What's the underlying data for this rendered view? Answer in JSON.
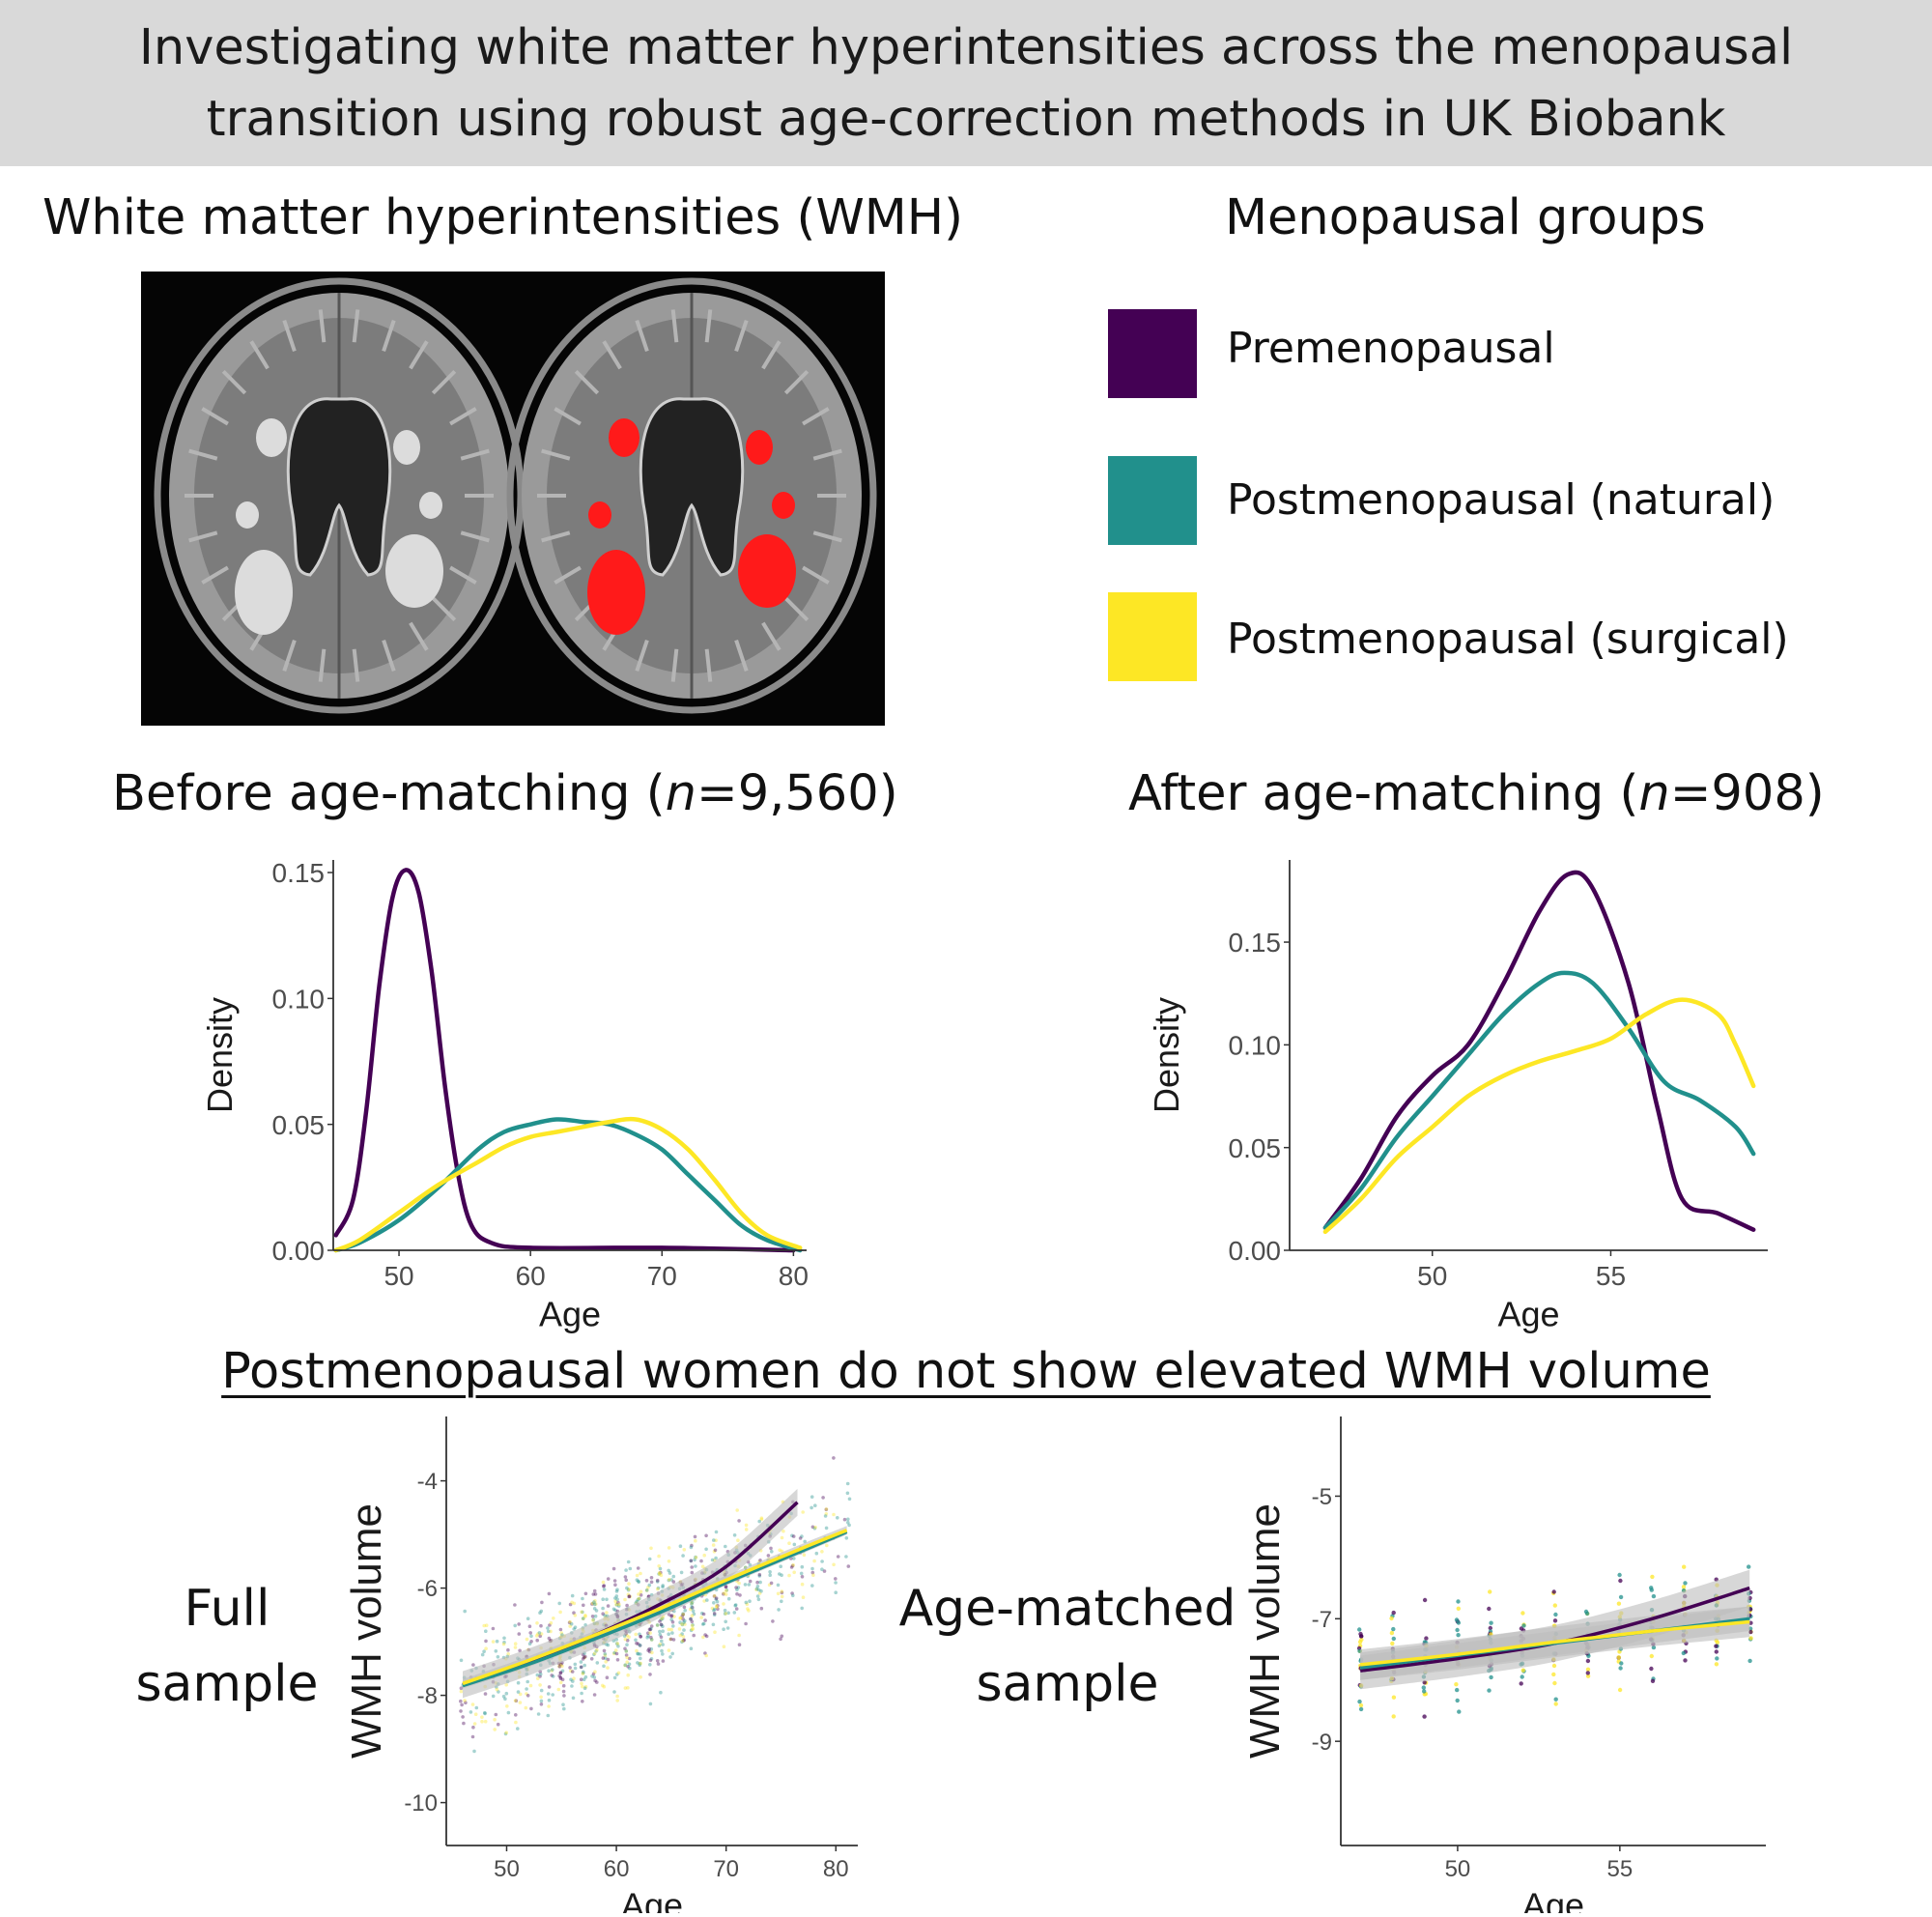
{
  "banner": {
    "line1": "Investigating white matter hyperintensities across the menopausal",
    "line2": "transition using robust age-correction methods in UK Biobank"
  },
  "wmh_panel": {
    "title": "White matter hyperintensities (WMH)"
  },
  "groups": {
    "title": "Menopausal groups",
    "items": [
      {
        "label": "Premenopausal",
        "color": "#440154"
      },
      {
        "label": "Postmenopausal (natural)",
        "color": "#21908C"
      },
      {
        "label": "Postmenopausal (surgical)",
        "color": "#FDE725"
      }
    ]
  },
  "before": {
    "title_prefix": "Before age-matching (",
    "title_n": "n",
    "title_suffix": "=9,560)"
  },
  "after": {
    "title_prefix": "After age-matching (",
    "title_n": "n",
    "title_suffix": "=908)"
  },
  "findings": {
    "heading": "Postmenopausal women do not show elevated WMH volume",
    "full_label_1": "Full",
    "full_label_2": "sample",
    "matched_label_1": "Age-matched",
    "matched_label_2": "sample"
  },
  "colors": {
    "pre": "#440154",
    "natural": "#21908C",
    "surgical": "#FDE725",
    "lesion": "#ff1a1a",
    "ci": "#bdbdbd"
  },
  "chart_data": [
    {
      "id": "density_before",
      "type": "line",
      "title": "Before age-matching (n=9,560)",
      "xlabel": "Age",
      "ylabel": "Density",
      "xlim": [
        45,
        81
      ],
      "ylim": [
        0,
        0.155
      ],
      "xticks": [
        50,
        60,
        70,
        80
      ],
      "yticks": [
        0.0,
        0.05,
        0.1,
        0.15
      ],
      "ytick_labels": [
        "0.00",
        "0.05",
        "0.10",
        "0.15"
      ],
      "series": [
        {
          "name": "Premenopausal",
          "color": "#440154",
          "points": [
            [
              45.2,
              0.006
            ],
            [
              46.5,
              0.02
            ],
            [
              47.5,
              0.055
            ],
            [
              48.5,
              0.105
            ],
            [
              49.5,
              0.14
            ],
            [
              50.5,
              0.151
            ],
            [
              51.5,
              0.142
            ],
            [
              52.5,
              0.11
            ],
            [
              53.5,
              0.065
            ],
            [
              54.5,
              0.03
            ],
            [
              55.5,
              0.01
            ],
            [
              57,
              0.003
            ],
            [
              60,
              0.001
            ],
            [
              70,
              0.001
            ],
            [
              80,
              0.0
            ]
          ]
        },
        {
          "name": "Postmenopausal (natural)",
          "color": "#21908C",
          "points": [
            [
              45.2,
              0.0
            ],
            [
              47,
              0.003
            ],
            [
              50,
              0.012
            ],
            [
              53,
              0.025
            ],
            [
              56,
              0.04
            ],
            [
              58,
              0.047
            ],
            [
              60,
              0.05
            ],
            [
              62,
              0.052
            ],
            [
              64,
              0.051
            ],
            [
              66,
              0.05
            ],
            [
              68,
              0.046
            ],
            [
              70,
              0.04
            ],
            [
              72,
              0.03
            ],
            [
              74,
              0.02
            ],
            [
              76,
              0.01
            ],
            [
              78,
              0.004
            ],
            [
              80.5,
              0.0
            ]
          ]
        },
        {
          "name": "Postmenopausal (surgical)",
          "color": "#FDE725",
          "points": [
            [
              45.2,
              0.0
            ],
            [
              47,
              0.004
            ],
            [
              50,
              0.015
            ],
            [
              53,
              0.026
            ],
            [
              56,
              0.035
            ],
            [
              58,
              0.041
            ],
            [
              60,
              0.045
            ],
            [
              62,
              0.047
            ],
            [
              64,
              0.049
            ],
            [
              66,
              0.051
            ],
            [
              68,
              0.052
            ],
            [
              70,
              0.048
            ],
            [
              72,
              0.04
            ],
            [
              74,
              0.028
            ],
            [
              76,
              0.015
            ],
            [
              78,
              0.006
            ],
            [
              80.5,
              0.001
            ]
          ]
        }
      ]
    },
    {
      "id": "density_after",
      "type": "line",
      "title": "After age-matching (n=908)",
      "xlabel": "Age",
      "ylabel": "Density",
      "xlim": [
        46,
        59.4
      ],
      "ylim": [
        0,
        0.19
      ],
      "xticks": [
        50,
        55
      ],
      "yticks": [
        0.0,
        0.05,
        0.1,
        0.15
      ],
      "ytick_labels": [
        "0.00",
        "0.05",
        "0.10",
        "0.15"
      ],
      "series": [
        {
          "name": "Premenopausal",
          "color": "#440154",
          "points": [
            [
              47,
              0.011
            ],
            [
              48,
              0.035
            ],
            [
              49,
              0.065
            ],
            [
              50,
              0.085
            ],
            [
              51,
              0.1
            ],
            [
              52,
              0.13
            ],
            [
              53,
              0.165
            ],
            [
              53.8,
              0.183
            ],
            [
              54.5,
              0.176
            ],
            [
              55.5,
              0.13
            ],
            [
              56.3,
              0.07
            ],
            [
              57,
              0.025
            ],
            [
              58,
              0.018
            ],
            [
              59,
              0.01
            ]
          ]
        },
        {
          "name": "Postmenopausal (natural)",
          "color": "#21908C",
          "points": [
            [
              47,
              0.011
            ],
            [
              48,
              0.03
            ],
            [
              49,
              0.055
            ],
            [
              50,
              0.075
            ],
            [
              51,
              0.095
            ],
            [
              52,
              0.115
            ],
            [
              53,
              0.13
            ],
            [
              53.7,
              0.135
            ],
            [
              54.5,
              0.13
            ],
            [
              55.5,
              0.108
            ],
            [
              56.5,
              0.082
            ],
            [
              57.5,
              0.073
            ],
            [
              58.5,
              0.06
            ],
            [
              59,
              0.047
            ]
          ]
        },
        {
          "name": "Postmenopausal (surgical)",
          "color": "#FDE725",
          "points": [
            [
              47,
              0.009
            ],
            [
              48,
              0.025
            ],
            [
              49,
              0.045
            ],
            [
              50,
              0.06
            ],
            [
              51,
              0.075
            ],
            [
              52,
              0.085
            ],
            [
              53,
              0.092
            ],
            [
              54,
              0.097
            ],
            [
              55,
              0.103
            ],
            [
              56,
              0.115
            ],
            [
              57,
              0.122
            ],
            [
              58,
              0.115
            ],
            [
              58.5,
              0.1
            ],
            [
              59,
              0.08
            ]
          ]
        }
      ]
    },
    {
      "id": "wmh_full",
      "type": "scatter",
      "title": "Full sample",
      "xlabel": "Age",
      "ylabel": "WMH volume",
      "xlim": [
        44.5,
        82
      ],
      "ylim": [
        -10.8,
        -2.8
      ],
      "xticks": [
        50,
        60,
        70,
        80
      ],
      "yticks": [
        -4,
        -6,
        -8,
        -10
      ],
      "fits": [
        {
          "name": "Premenopausal",
          "color": "#440154",
          "points": [
            [
              46,
              -7.8
            ],
            [
              52,
              -7.38
            ],
            [
              58,
              -6.88
            ],
            [
              64,
              -6.3
            ],
            [
              70,
              -5.6
            ],
            [
              76.5,
              -4.4
            ]
          ],
          "ci": 0.25
        },
        {
          "name": "Postmenopausal (natural)",
          "color": "#21908C",
          "points": [
            [
              46,
              -7.82
            ],
            [
              52,
              -7.42
            ],
            [
              58,
              -6.95
            ],
            [
              64,
              -6.45
            ],
            [
              70,
              -5.9
            ],
            [
              77,
              -5.3
            ],
            [
              81,
              -4.95
            ]
          ],
          "ci": 0.05
        },
        {
          "name": "Postmenopausal (surgical)",
          "color": "#FDE725",
          "points": [
            [
              46,
              -7.78
            ],
            [
              52,
              -7.35
            ],
            [
              58,
              -6.88
            ],
            [
              64,
              -6.38
            ],
            [
              70,
              -5.85
            ],
            [
              77,
              -5.25
            ],
            [
              81,
              -4.92
            ]
          ],
          "ci": 0.08
        }
      ]
    },
    {
      "id": "wmh_matched",
      "type": "scatter",
      "title": "Age-matched sample",
      "xlabel": "Age",
      "ylabel": "WMH volume",
      "xlim": [
        46.4,
        59.5
      ],
      "ylim": [
        -10.7,
        -3.7
      ],
      "xticks": [
        50,
        55
      ],
      "yticks": [
        -5,
        -7,
        -9
      ],
      "fits": [
        {
          "name": "Premenopausal",
          "color": "#440154",
          "points": [
            [
              47,
              -7.85
            ],
            [
              50,
              -7.65
            ],
            [
              53,
              -7.4
            ],
            [
              56,
              -7.0
            ],
            [
              59,
              -6.5
            ]
          ],
          "ci": 0.3
        },
        {
          "name": "Postmenopausal (natural)",
          "color": "#21908C",
          "points": [
            [
              47,
              -7.8
            ],
            [
              50,
              -7.6
            ],
            [
              53,
              -7.4
            ],
            [
              56,
              -7.2
            ],
            [
              59,
              -7.0
            ]
          ],
          "ci": 0.2
        },
        {
          "name": "Postmenopausal (surgical)",
          "color": "#FDE725",
          "points": [
            [
              47,
              -7.75
            ],
            [
              50,
              -7.58
            ],
            [
              53,
              -7.38
            ],
            [
              56,
              -7.2
            ],
            [
              59,
              -7.05
            ]
          ],
          "ci": 0.25
        }
      ]
    }
  ]
}
